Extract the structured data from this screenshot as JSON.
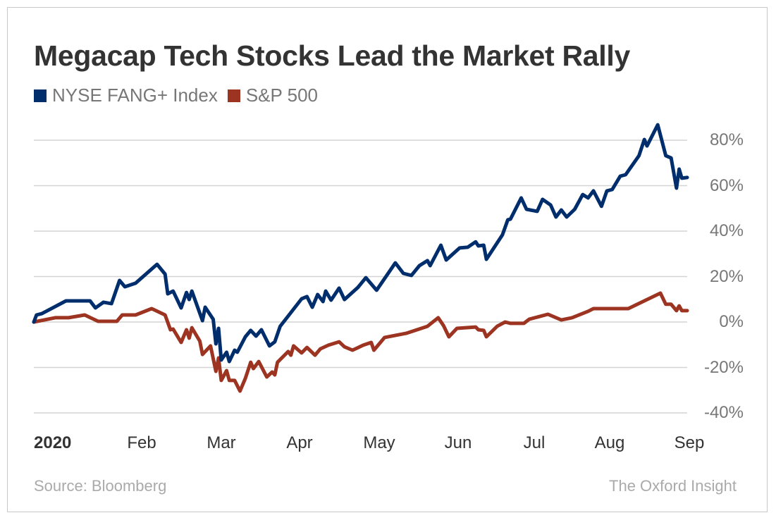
{
  "chart_data": {
    "type": "line",
    "title": "Megacap Tech Stocks Lead the Market Rally",
    "legend_position": "top-left",
    "grid": true,
    "ylim": [
      -40,
      80
    ],
    "y_ticks": [
      "80%",
      "60%",
      "40%",
      "20%",
      "0%",
      "-20%",
      "-40%"
    ],
    "y_tick_values": [
      80,
      60,
      40,
      20,
      0,
      -20,
      -40
    ],
    "x_ticks": [
      "2020",
      "Feb",
      "Mar",
      "Apr",
      "May",
      "Jun",
      "Jul",
      "Aug",
      "Sep"
    ],
    "xlim": [
      "2020-01-02",
      "2020-09-02"
    ],
    "source": "Source: Bloomberg",
    "brand": "The Oxford Insight",
    "series": [
      {
        "name": "NYSE FANG+ Index",
        "color": "#002d6b",
        "points": [
          [
            "2020-01-02",
            0
          ],
          [
            "2020-01-03",
            3.1
          ],
          [
            "2020-01-05",
            3.7
          ],
          [
            "2020-01-14",
            9.3
          ],
          [
            "2020-01-23",
            9.3
          ],
          [
            "2020-01-25",
            6.2
          ],
          [
            "2020-01-28",
            8.7
          ],
          [
            "2020-01-31",
            8.1
          ],
          [
            "2020-02-03",
            18.3
          ],
          [
            "2020-02-05",
            15.5
          ],
          [
            "2020-02-09",
            17.1
          ],
          [
            "2020-02-17",
            25.4
          ],
          [
            "2020-02-20",
            21.1
          ],
          [
            "2020-02-21",
            12.4
          ],
          [
            "2020-02-23",
            13.6
          ],
          [
            "2020-02-26",
            6.2
          ],
          [
            "2020-02-28",
            13.0
          ],
          [
            "2020-02-29",
            9.9
          ],
          [
            "2020-03-01",
            13.6
          ],
          [
            "2020-03-05",
            0.6
          ],
          [
            "2020-03-06",
            6.5
          ],
          [
            "2020-03-09",
            1.2
          ],
          [
            "2020-03-10",
            -9.6
          ],
          [
            "2020-03-11",
            -2.8
          ],
          [
            "2020-03-12",
            -16.7
          ],
          [
            "2020-03-14",
            -13.3
          ],
          [
            "2020-03-15",
            -17.4
          ],
          [
            "2020-03-17",
            -12.4
          ],
          [
            "2020-03-18",
            -13.3
          ],
          [
            "2020-03-21",
            -6.5
          ],
          [
            "2020-03-23",
            -3.7
          ],
          [
            "2020-03-25",
            -6.2
          ],
          [
            "2020-03-27",
            -3.4
          ],
          [
            "2020-03-30",
            -10.5
          ],
          [
            "2020-04-01",
            -8.7
          ],
          [
            "2020-04-03",
            -1.9
          ],
          [
            "2020-04-11",
            10.2
          ],
          [
            "2020-04-13",
            11.2
          ],
          [
            "2020-04-15",
            6.5
          ],
          [
            "2020-04-17",
            12.1
          ],
          [
            "2020-04-19",
            9.0
          ],
          [
            "2020-04-20",
            13.6
          ],
          [
            "2020-04-22",
            9.6
          ],
          [
            "2020-04-25",
            14.9
          ],
          [
            "2020-04-27",
            9.9
          ],
          [
            "2020-05-02",
            15.2
          ],
          [
            "2020-05-05",
            19.5
          ],
          [
            "2020-05-09",
            14.0
          ],
          [
            "2020-05-16",
            26.0
          ],
          [
            "2020-05-19",
            21.4
          ],
          [
            "2020-05-22",
            20.5
          ],
          [
            "2020-05-25",
            24.8
          ],
          [
            "2020-05-28",
            27.0
          ],
          [
            "2020-05-29",
            24.8
          ],
          [
            "2020-06-02",
            33.8
          ],
          [
            "2020-06-04",
            27.3
          ],
          [
            "2020-06-09",
            32.6
          ],
          [
            "2020-06-12",
            32.9
          ],
          [
            "2020-06-15",
            35.3
          ],
          [
            "2020-06-16",
            33.5
          ],
          [
            "2020-06-18",
            33.8
          ],
          [
            "2020-06-19",
            27.6
          ],
          [
            "2020-06-25",
            38.4
          ],
          [
            "2020-06-27",
            45.0
          ],
          [
            "2020-06-28",
            45.3
          ],
          [
            "2020-07-02",
            54.6
          ],
          [
            "2020-07-04",
            49.6
          ],
          [
            "2020-07-08",
            48.7
          ],
          [
            "2020-07-10",
            54.0
          ],
          [
            "2020-07-13",
            51.5
          ],
          [
            "2020-07-15",
            46.2
          ],
          [
            "2020-07-17",
            49.3
          ],
          [
            "2020-07-19",
            46.2
          ],
          [
            "2020-07-22",
            49.6
          ],
          [
            "2020-07-25",
            56.1
          ],
          [
            "2020-07-27",
            54.6
          ],
          [
            "2020-07-29",
            57.7
          ],
          [
            "2020-08-01",
            50.9
          ],
          [
            "2020-08-03",
            57.7
          ],
          [
            "2020-08-05",
            58.3
          ],
          [
            "2020-08-08",
            64.2
          ],
          [
            "2020-08-10",
            64.8
          ],
          [
            "2020-08-15",
            73.2
          ],
          [
            "2020-08-17",
            80.3
          ],
          [
            "2020-08-18",
            77.5
          ],
          [
            "2020-08-22",
            86.8
          ],
          [
            "2020-08-25",
            73.2
          ],
          [
            "2020-08-27",
            72.2
          ],
          [
            "2020-08-29",
            58.9
          ],
          [
            "2020-08-30",
            67.3
          ],
          [
            "2020-08-31",
            63.3
          ],
          [
            "2020-09-02",
            63.6
          ]
        ]
      },
      {
        "name": "S&P 500",
        "color": "#9c3421",
        "points": [
          [
            "2020-01-02",
            0
          ],
          [
            "2020-01-10",
            1.9
          ],
          [
            "2020-01-15",
            1.9
          ],
          [
            "2020-01-21",
            3.1
          ],
          [
            "2020-01-26",
            0.3
          ],
          [
            "2020-02-02",
            0.3
          ],
          [
            "2020-02-04",
            3.1
          ],
          [
            "2020-02-09",
            3.1
          ],
          [
            "2020-02-15",
            5.9
          ],
          [
            "2020-02-20",
            3.1
          ],
          [
            "2020-02-22",
            -3.4
          ],
          [
            "2020-02-23",
            -3.1
          ],
          [
            "2020-02-26",
            -9.0
          ],
          [
            "2020-02-28",
            -3.4
          ],
          [
            "2020-02-29",
            -7.1
          ],
          [
            "2020-03-01",
            -2.5
          ],
          [
            "2020-03-04",
            -8.4
          ],
          [
            "2020-03-05",
            -14.3
          ],
          [
            "2020-03-08",
            -10.5
          ],
          [
            "2020-03-10",
            -21.7
          ],
          [
            "2020-03-11",
            -15.8
          ],
          [
            "2020-03-12",
            -25.7
          ],
          [
            "2020-03-14",
            -21.4
          ],
          [
            "2020-03-15",
            -25.7
          ],
          [
            "2020-03-17",
            -25.7
          ],
          [
            "2020-03-19",
            -30.4
          ],
          [
            "2020-03-21",
            -24.8
          ],
          [
            "2020-03-23",
            -17.7
          ],
          [
            "2020-03-24",
            -20.5
          ],
          [
            "2020-03-26",
            -17.4
          ],
          [
            "2020-03-29",
            -24.2
          ],
          [
            "2020-03-31",
            -22.0
          ],
          [
            "2020-04-01",
            -23.3
          ],
          [
            "2020-04-02",
            -17.7
          ],
          [
            "2020-04-06",
            -13.0
          ],
          [
            "2020-04-07",
            -14.6
          ],
          [
            "2020-04-08",
            -10.5
          ],
          [
            "2020-04-11",
            -13.6
          ],
          [
            "2020-04-13",
            -11.2
          ],
          [
            "2020-04-16",
            -14.6
          ],
          [
            "2020-04-18",
            -11.8
          ],
          [
            "2020-04-21",
            -10.2
          ],
          [
            "2020-04-25",
            -8.7
          ],
          [
            "2020-04-27",
            -10.9
          ],
          [
            "2020-04-30",
            -12.4
          ],
          [
            "2020-05-04",
            -10.2
          ],
          [
            "2020-05-07",
            -9.0
          ],
          [
            "2020-05-08",
            -12.4
          ],
          [
            "2020-05-12",
            -6.8
          ],
          [
            "2020-05-20",
            -5.0
          ],
          [
            "2020-05-28",
            -1.9
          ],
          [
            "2020-06-01",
            1.9
          ],
          [
            "2020-06-03",
            -1.6
          ],
          [
            "2020-06-05",
            -6.5
          ],
          [
            "2020-06-08",
            -2.8
          ],
          [
            "2020-06-15",
            -2.2
          ],
          [
            "2020-06-16",
            -3.4
          ],
          [
            "2020-06-18",
            -3.7
          ],
          [
            "2020-06-19",
            -6.5
          ],
          [
            "2020-06-23",
            -1.9
          ],
          [
            "2020-06-26",
            0
          ],
          [
            "2020-06-28",
            -0.6
          ],
          [
            "2020-07-03",
            -0.6
          ],
          [
            "2020-07-05",
            1.2
          ],
          [
            "2020-07-12",
            3.4
          ],
          [
            "2020-07-17",
            0.9
          ],
          [
            "2020-07-21",
            1.9
          ],
          [
            "2020-07-27",
            4.7
          ],
          [
            "2020-07-29",
            5.9
          ],
          [
            "2020-08-11",
            5.9
          ],
          [
            "2020-08-23",
            12.7
          ],
          [
            "2020-08-25",
            7.8
          ],
          [
            "2020-08-27",
            7.8
          ],
          [
            "2020-08-29",
            5.0
          ],
          [
            "2020-08-30",
            7.1
          ],
          [
            "2020-08-31",
            5.0
          ],
          [
            "2020-09-02",
            5.0
          ]
        ]
      }
    ]
  }
}
